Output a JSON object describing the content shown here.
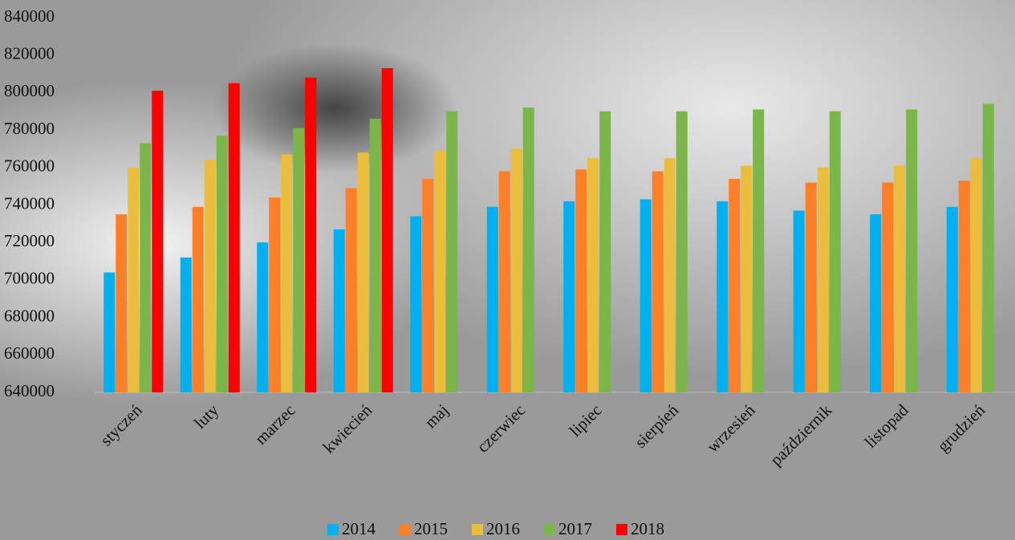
{
  "chart_data": {
    "type": "bar",
    "categories": [
      "styczeń",
      "luty",
      "marzec",
      "kwiecień",
      "maj",
      "czerwiec",
      "lipiec",
      "sierpień",
      "wrzesień",
      "październik",
      "listopad",
      "grudzień"
    ],
    "series": [
      {
        "name": "2014",
        "color": "#00b0f0",
        "values": [
          704000,
          712000,
          720000,
          727000,
          734000,
          739000,
          742000,
          743000,
          742000,
          737000,
          735000,
          739000
        ]
      },
      {
        "name": "2015",
        "color": "#ff7f27",
        "values": [
          735000,
          739000,
          744000,
          749000,
          754000,
          758000,
          759000,
          758000,
          754000,
          752000,
          752000,
          753000
        ]
      },
      {
        "name": "2016",
        "color": "#ebbd3a",
        "values": [
          760000,
          764000,
          767000,
          768000,
          769000,
          770000,
          765000,
          765000,
          761000,
          760000,
          761000,
          765000
        ]
      },
      {
        "name": "2017",
        "color": "#7ab648",
        "values": [
          773000,
          777000,
          781000,
          786000,
          790000,
          792000,
          790000,
          790000,
          791000,
          790000,
          791000,
          794000
        ]
      },
      {
        "name": "2018",
        "color": "#ff0000",
        "values": [
          801000,
          805000,
          808000,
          813000,
          null,
          null,
          null,
          null,
          null,
          null,
          null,
          null
        ]
      }
    ],
    "ylim": [
      640000,
      840000
    ],
    "yticks": [
      640000,
      660000,
      680000,
      700000,
      720000,
      740000,
      760000,
      780000,
      800000,
      820000,
      840000
    ],
    "grid": false,
    "legend": "bottom"
  }
}
